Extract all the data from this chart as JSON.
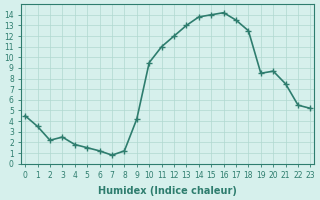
{
  "x": [
    0,
    1,
    2,
    3,
    4,
    5,
    6,
    7,
    8,
    9,
    10,
    11,
    12,
    13,
    14,
    15,
    16,
    17,
    18,
    19,
    20,
    21,
    22,
    23
  ],
  "y": [
    4.5,
    3.5,
    2.2,
    2.5,
    1.8,
    1.5,
    1.2,
    0.8,
    1.2,
    4.2,
    9.5,
    11.0,
    12.0,
    13.0,
    13.8,
    14.0,
    14.2,
    13.5,
    12.5,
    8.5,
    8.7,
    7.5,
    5.5,
    5.2
  ],
  "xlabel": "Humidex (Indice chaleur)",
  "ylabel": "",
  "title": "",
  "line_color": "#2e7d6e",
  "marker": "+",
  "bg_color": "#d6f0ec",
  "grid_color": "#b0d8d0",
  "ylim": [
    0,
    15
  ],
  "xlim": [
    0,
    23
  ],
  "yticks": [
    0,
    1,
    2,
    3,
    4,
    5,
    6,
    7,
    8,
    9,
    10,
    11,
    12,
    13,
    14
  ],
  "xticks": [
    0,
    1,
    2,
    3,
    4,
    5,
    6,
    7,
    8,
    9,
    10,
    11,
    12,
    13,
    14,
    15,
    16,
    17,
    18,
    19,
    20,
    21,
    22,
    23
  ]
}
